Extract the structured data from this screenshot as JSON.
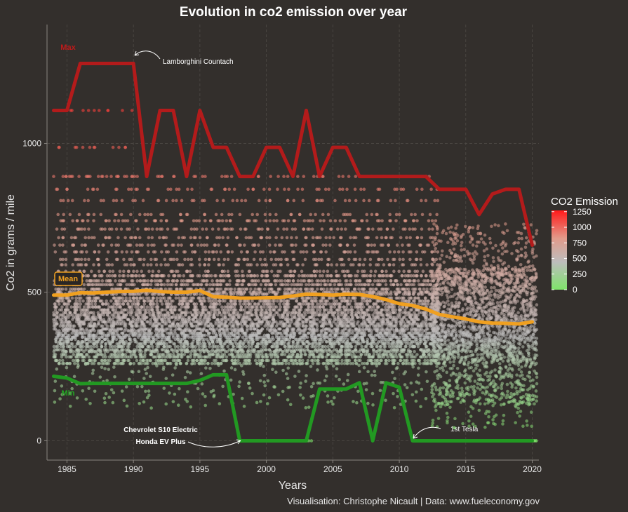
{
  "chart_data": {
    "type": "scatter",
    "title": "Evolution in co2 emission over year",
    "xlabel": "Years",
    "ylabel": "Co2 in grams / mile",
    "caption": "Visualisation: Christophe Nicault | Data: www.fueleconomy.gov",
    "xlim": [
      1983.5,
      2020.5
    ],
    "ylim": [
      -65,
      1400
    ],
    "x_ticks": [
      1985,
      1990,
      1995,
      2000,
      2005,
      2010,
      2015,
      2020
    ],
    "y_ticks": [
      0,
      500,
      1000
    ],
    "grid": true,
    "legend": {
      "title": "CO2 Emission",
      "position": "right",
      "labels": [
        1250,
        1000,
        750,
        500,
        250,
        0
      ],
      "colors": [
        "#7fe36b",
        "#bdbdbd",
        "#e29a8a",
        "#ff1a1a"
      ]
    },
    "series": [
      {
        "name": "Max",
        "color": "#b31b1b",
        "x": [
          1984,
          1985,
          1986,
          1987,
          1988,
          1989,
          1990,
          1991,
          1992,
          1993,
          1994,
          1995,
          1996,
          1997,
          1998,
          1999,
          2000,
          2001,
          2002,
          2003,
          2004,
          2005,
          2006,
          2007,
          2008,
          2009,
          2010,
          2011,
          2012,
          2013,
          2014,
          2015,
          2016,
          2017,
          2018,
          2019,
          2020
        ],
        "y": [
          1111,
          1111,
          1269,
          1269,
          1269,
          1269,
          1269,
          889,
          1111,
          1111,
          889,
          1111,
          987,
          987,
          889,
          889,
          987,
          987,
          889,
          1111,
          889,
          987,
          987,
          889,
          889,
          889,
          889,
          889,
          889,
          846,
          846,
          846,
          761,
          830,
          846,
          846,
          658
        ]
      },
      {
        "name": "Mean",
        "color": "#f0a020",
        "x": [
          1984,
          1985,
          1986,
          1987,
          1988,
          1989,
          1990,
          1991,
          1992,
          1993,
          1994,
          1995,
          1996,
          1997,
          1998,
          1999,
          2000,
          2001,
          2002,
          2003,
          2004,
          2005,
          2006,
          2007,
          2008,
          2009,
          2010,
          2011,
          2012,
          2013,
          2014,
          2015,
          2016,
          2017,
          2018,
          2019,
          2020
        ],
        "y": [
          490,
          490,
          498,
          497,
          500,
          502,
          503,
          506,
          502,
          500,
          500,
          505,
          485,
          483,
          480,
          480,
          481,
          482,
          487,
          493,
          492,
          490,
          493,
          492,
          485,
          475,
          461,
          455,
          443,
          425,
          417,
          410,
          400,
          396,
          395,
          393,
          400
        ]
      },
      {
        "name": "Min",
        "color": "#229922",
        "x": [
          1984,
          1985,
          1986,
          1987,
          1988,
          1989,
          1990,
          1991,
          1992,
          1993,
          1994,
          1995,
          1996,
          1997,
          1998,
          1999,
          2000,
          2001,
          2002,
          2003,
          2004,
          2005,
          2006,
          2007,
          2008,
          2009,
          2010,
          2011,
          2012,
          2013,
          2014,
          2015,
          2016,
          2017,
          2018,
          2019,
          2020
        ],
        "y": [
          217,
          211,
          192,
          193,
          193,
          193,
          193,
          193,
          193,
          193,
          193,
          203,
          222,
          222,
          0,
          0,
          0,
          0,
          0,
          0,
          174,
          174,
          174,
          195,
          0,
          195,
          180,
          0,
          0,
          0,
          0,
          0,
          0,
          0,
          0,
          0,
          0
        ]
      }
    ],
    "scatter_bands": [
      889,
      846,
      808,
      761,
      740,
      712,
      683,
      658,
      635,
      610,
      592,
      570,
      555,
      538,
      525,
      510,
      500,
      493,
      480,
      470,
      460,
      450,
      440,
      431,
      423,
      415,
      408,
      400,
      393,
      386,
      376,
      370,
      362,
      355,
      348,
      341,
      333,
      326,
      317,
      306,
      300,
      290,
      282,
      270,
      260,
      250,
      240,
      222,
      200,
      190,
      175,
      160,
      140,
      120,
      0
    ],
    "annotations": [
      {
        "text": "Lamborghini Countach",
        "x": 1990,
        "y": 1269
      },
      {
        "text": "Chevrolet S10 Electric",
        "x": 1998,
        "y": 0
      },
      {
        "text": "Honda EV Plus",
        "x": 1998,
        "y": 0
      },
      {
        "text": "1st Tesla",
        "x": 2011,
        "y": 0
      }
    ]
  }
}
